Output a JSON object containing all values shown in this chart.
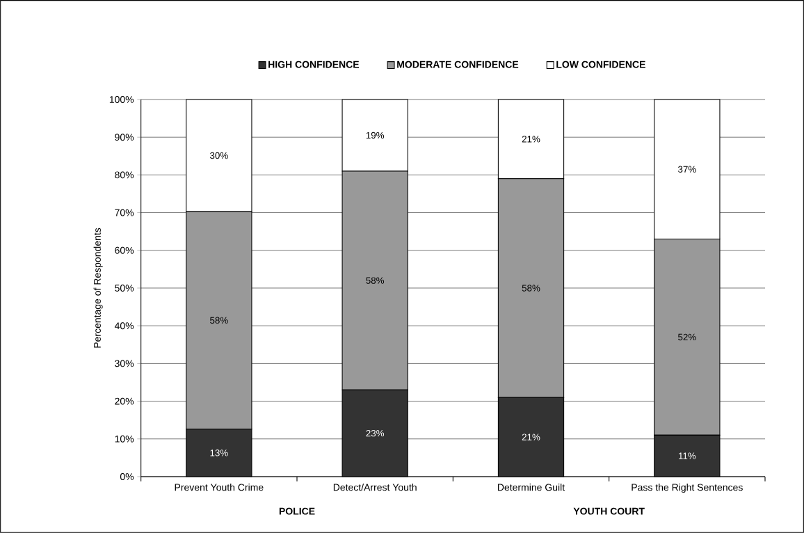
{
  "chart_data": {
    "type": "bar",
    "stacked": true,
    "categories": [
      "Prevent Youth Crime",
      "Detect/Arrest Youth",
      "Determine Guilt",
      "Pass the Right Sentences"
    ],
    "ylabel": "Percentage of Respondents",
    "series": [
      {
        "name": "HIGH CONFIDENCE",
        "color": "#333333",
        "values": [
          12.6,
          23,
          21,
          11
        ],
        "value_labels": [
          "13%",
          "23%",
          "21%",
          "11%"
        ]
      },
      {
        "name": "MODERATE CONFIDENCE",
        "color": "#999999",
        "values": [
          57.7,
          58,
          58,
          52
        ],
        "value_labels": [
          "58%",
          "58%",
          "58%",
          "52%"
        ]
      },
      {
        "name": "LOW CONFIDENCE",
        "color": "#ffffff",
        "values": [
          29.7,
          19,
          21,
          37
        ],
        "value_labels": [
          "30%",
          "19%",
          "21%",
          "37%"
        ]
      }
    ],
    "ylim": [
      0,
      100
    ],
    "yticks": [
      {
        "value": 0,
        "label": "0%"
      },
      {
        "value": 10,
        "label": "10%"
      },
      {
        "value": 20,
        "label": "20%"
      },
      {
        "value": 30,
        "label": "30%"
      },
      {
        "value": 40,
        "label": "40%"
      },
      {
        "value": 50,
        "label": "50%"
      },
      {
        "value": 60,
        "label": "60%"
      },
      {
        "value": 70,
        "label": "70%"
      },
      {
        "value": 80,
        "label": "80%"
      },
      {
        "value": 90,
        "label": "90%"
      },
      {
        "value": 100,
        "label": "100%"
      }
    ],
    "grid": "y",
    "legend": "top",
    "annotations": [
      "POLICE",
      "YOUTH COURT"
    ]
  }
}
